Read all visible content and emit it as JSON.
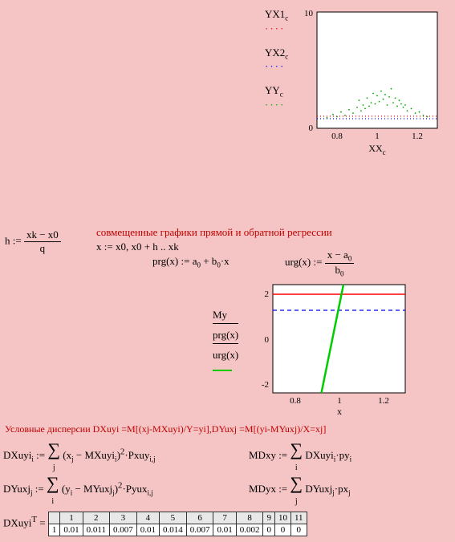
{
  "chart1": {
    "type": "scatter",
    "x_axis": {
      "label": "XX",
      "sub": "c",
      "ticks": [
        0.8,
        1,
        1.2
      ],
      "xlim": [
        0.7,
        1.3
      ]
    },
    "y_axis": {
      "ticks": [
        0,
        10
      ],
      "ylim": [
        0,
        10
      ]
    },
    "legend": [
      {
        "label": "YX1",
        "sub": "c",
        "color": "#ff0000",
        "style": "dotted"
      },
      {
        "label": "YX2",
        "sub": "c",
        "color": "#0000ff",
        "style": "dotted"
      },
      {
        "label": "YY",
        "sub": "c",
        "color": "#00aa00",
        "style": "dotted"
      }
    ],
    "series": {
      "yx1": {
        "color": "#ff0000",
        "y": 1.0
      },
      "yx2": {
        "color": "#0000ff",
        "y": 0.85
      },
      "yy_scatter": {
        "color": "#00aa00",
        "points": [
          [
            0.75,
            0.9
          ],
          [
            0.78,
            1.2
          ],
          [
            0.8,
            1.0
          ],
          [
            0.82,
            1.4
          ],
          [
            0.84,
            1.1
          ],
          [
            0.86,
            1.6
          ],
          [
            0.88,
            1.3
          ],
          [
            0.9,
            1.8
          ],
          [
            0.91,
            2.4
          ],
          [
            0.92,
            1.5
          ],
          [
            0.93,
            2.0
          ],
          [
            0.94,
            1.7
          ],
          [
            0.95,
            2.6
          ],
          [
            0.96,
            1.9
          ],
          [
            0.97,
            2.2
          ],
          [
            0.98,
            3.0
          ],
          [
            0.99,
            2.1
          ],
          [
            1.0,
            2.8
          ],
          [
            1.01,
            2.3
          ],
          [
            1.02,
            3.2
          ],
          [
            1.03,
            2.5
          ],
          [
            1.04,
            2.9
          ],
          [
            1.05,
            2.0
          ],
          [
            1.06,
            2.7
          ],
          [
            1.07,
            3.4
          ],
          [
            1.08,
            2.2
          ],
          [
            1.09,
            2.6
          ],
          [
            1.1,
            1.9
          ],
          [
            1.11,
            2.4
          ],
          [
            1.12,
            2.1
          ],
          [
            1.13,
            1.8
          ],
          [
            1.14,
            2.0
          ],
          [
            1.15,
            1.5
          ],
          [
            1.17,
            1.7
          ],
          [
            1.19,
            1.3
          ],
          [
            1.21,
            1.4
          ],
          [
            1.23,
            1.1
          ],
          [
            1.25,
            1.0
          ]
        ]
      }
    },
    "background": "#ffffff",
    "border_color": "#000000"
  },
  "eq_h": {
    "lhs": "h",
    "num": "xk − x0",
    "den": "q"
  },
  "heading1": "совмещенные графики прямой и обратной регрессии",
  "eq_x": "x := x0, x0 + h .. xk",
  "eq_prg": {
    "lhs": "prg(x) := a",
    "sub0": "0",
    "mid": " + b",
    "sub1": "0",
    "tail": "·x"
  },
  "eq_urg": {
    "lhs": "urg(x) := ",
    "num_a": "x − a",
    "num_sub": "0",
    "den_b": "b",
    "den_sub": "0"
  },
  "chart2": {
    "type": "line",
    "x_axis": {
      "label": "x",
      "ticks": [
        0.8,
        1,
        1.2
      ],
      "xlim": [
        0.7,
        1.3
      ]
    },
    "y_axis": {
      "ticks": [
        -2,
        0,
        2
      ],
      "ylim": [
        -2.5,
        2.3
      ]
    },
    "legend": [
      {
        "label": "My",
        "color": "#ff0000",
        "style": "solid"
      },
      {
        "label": "prg(x)",
        "color": "#0000ff",
        "style": "dashed"
      },
      {
        "label": "urg(x)",
        "color": "#00cc00",
        "style": "solid-thick"
      }
    ],
    "series": {
      "my": {
        "color": "#ff0000",
        "y": 2.0
      },
      "prg": {
        "color": "#0000ff",
        "y": 1.3
      },
      "urg": {
        "color": "#00cc00",
        "x1": 0.92,
        "y1": -2.5,
        "x2": 1.02,
        "y2": 2.3
      }
    },
    "background": "#ffffff",
    "border_color": "#000000"
  },
  "heading2": "Условные дисперсии DXuyi =M[(xj-MXuyi)/Y=yi],DYuxj =M[(yi-MYuxj)/X=xj]",
  "formulas": {
    "dxuyi": {
      "lhs": "DXuyi",
      "lsub": "i",
      "assign": " := ",
      "sigma_sub": "j",
      "body_a": "(x",
      "body_a_sub": "j",
      "body_b": " − MXuyi",
      "body_b_sub": "i",
      "body_c": ")",
      "sup": "2",
      "body_d": "·Pxuy",
      "body_d_sub": "i,j"
    },
    "dyuxj": {
      "lhs": "DYuxj",
      "lsub": "j",
      "assign": " := ",
      "sigma_sub": "i",
      "body_a": "(y",
      "body_a_sub": "i",
      "body_b": " − MYuxj",
      "body_b_sub": "j",
      "body_c": ")",
      "sup": "2",
      "body_d": "·Pyux",
      "body_d_sub": "i,j"
    },
    "mdxy": {
      "lhs": "MDxy := ",
      "sigma_sub": "i",
      "body": "DXuyi",
      "body_sub": "i",
      "tail": "·py",
      "tail_sub": "i"
    },
    "mdyx": {
      "lhs": "MDyx := ",
      "sigma_sub": "j",
      "body": "DYuxj",
      "body_sub": "j",
      "tail": "·px",
      "tail_sub": "j"
    }
  },
  "table": {
    "label": "DXuyi",
    "sup": "T",
    "eq": " = ",
    "headers": [
      "",
      "1",
      "2",
      "3",
      "4",
      "5",
      "6",
      "7",
      "8",
      "9",
      "10",
      "11"
    ],
    "row": [
      "1",
      "0.01",
      "0.011",
      "0.007",
      "0.01",
      "0.014",
      "0.007",
      "0.01",
      "0.002",
      "0",
      "0",
      "0"
    ]
  }
}
